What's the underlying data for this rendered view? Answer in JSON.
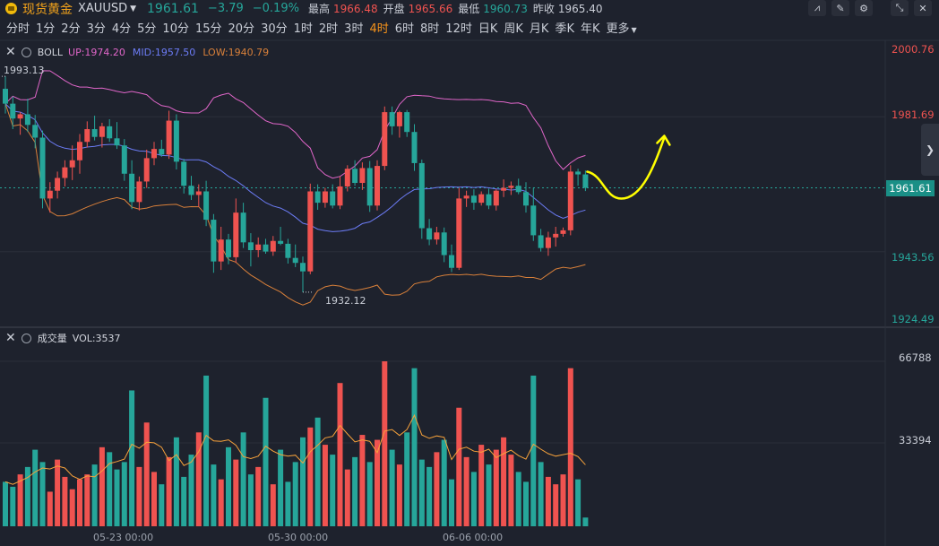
{
  "header": {
    "name": "现货黄金",
    "code": "XAUUSD",
    "last": "1961.61",
    "change": "−3.79",
    "change_pct": "−0.19%",
    "high_label": "最高",
    "high": "1966.48",
    "open_label": "开盘",
    "open": "1965.66",
    "low_label": "最低",
    "low": "1960.73",
    "prev_label": "昨收",
    "prev": "1965.40"
  },
  "timeframes": [
    {
      "label": "分时",
      "active": false
    },
    {
      "label": "1分",
      "active": false
    },
    {
      "label": "2分",
      "active": false
    },
    {
      "label": "3分",
      "active": false
    },
    {
      "label": "4分",
      "active": false
    },
    {
      "label": "5分",
      "active": false
    },
    {
      "label": "10分",
      "active": false
    },
    {
      "label": "15分",
      "active": false
    },
    {
      "label": "20分",
      "active": false
    },
    {
      "label": "30分",
      "active": false
    },
    {
      "label": "1时",
      "active": false
    },
    {
      "label": "2时",
      "active": false
    },
    {
      "label": "3时",
      "active": false
    },
    {
      "label": "4时",
      "active": true
    },
    {
      "label": "6时",
      "active": false
    },
    {
      "label": "8时",
      "active": false
    },
    {
      "label": "12时",
      "active": false
    },
    {
      "label": "日K",
      "active": false
    },
    {
      "label": "周K",
      "active": false
    },
    {
      "label": "月K",
      "active": false
    },
    {
      "label": "季K",
      "active": false
    },
    {
      "label": "年K",
      "active": false
    },
    {
      "label": "更多",
      "active": false
    }
  ],
  "boll": {
    "name": "BOLL",
    "up": "UP:1974.20",
    "mid": "MID:1957.50",
    "low": "LOW:1940.79"
  },
  "volume_pane": {
    "name": "成交量",
    "value": "VOL:3537"
  },
  "price_axis": {
    "ticks": [
      {
        "label": "2000.76",
        "color": "#ef5350"
      },
      {
        "label": "1981.69",
        "color": "#ef5350"
      },
      {
        "label": "1943.56",
        "color": "#26a69a"
      },
      {
        "label": "1924.49",
        "color": "#26a69a"
      }
    ],
    "current": "1961.61"
  },
  "volume_axis": {
    "ticks": [
      "66788",
      "33394"
    ]
  },
  "time_axis": {
    "ticks": [
      "05-23 00:00",
      "05-30 00:00",
      "06-06 00:00"
    ]
  },
  "annotations": {
    "high_mark": "1993.13",
    "low_mark": "1932.12"
  },
  "colors": {
    "up": "#ef5350",
    "down": "#26a69a",
    "boll_up": "#e066c9",
    "boll_mid": "#6c7cf6",
    "boll_low": "#d9803a",
    "vol_ma": "#f7a23b",
    "drawing": "#ffff00"
  },
  "chart_data": {
    "type": "candlestick",
    "timeframe": "4时",
    "ylim": [
      1924.49,
      2000.76
    ],
    "x_ticks": [
      "05-23 00:00",
      "05-30 00:00",
      "06-06 00:00"
    ],
    "candles": [
      [
        1989.6,
        1993.1,
        1982.6,
        1985.4
      ],
      [
        1985.4,
        1987.4,
        1978.2,
        1981.2
      ],
      [
        1981.2,
        1983.0,
        1976.6,
        1982.4
      ],
      [
        1982.4,
        1986.8,
        1977.4,
        1979.4
      ],
      [
        1979.4,
        1982.2,
        1972.8,
        1975.8
      ],
      [
        1975.8,
        1977.8,
        1955.8,
        1958.6
      ],
      [
        1958.6,
        1963.2,
        1954.6,
        1960.8
      ],
      [
        1960.8,
        1966.2,
        1958.6,
        1964.4
      ],
      [
        1964.4,
        1969.4,
        1962.0,
        1967.4
      ],
      [
        1967.4,
        1973.6,
        1963.8,
        1969.4
      ],
      [
        1969.4,
        1976.8,
        1965.6,
        1974.6
      ],
      [
        1974.6,
        1980.4,
        1973.0,
        1978.2
      ],
      [
        1978.2,
        1982.0,
        1975.0,
        1976.0
      ],
      [
        1976.0,
        1980.0,
        1973.0,
        1979.0
      ],
      [
        1979.0,
        1981.0,
        1974.6,
        1975.6
      ],
      [
        1975.6,
        1980.2,
        1972.6,
        1973.6
      ],
      [
        1973.6,
        1975.4,
        1963.6,
        1965.6
      ],
      [
        1965.6,
        1969.4,
        1955.6,
        1957.6
      ],
      [
        1957.6,
        1964.8,
        1955.2,
        1963.4
      ],
      [
        1963.4,
        1972.4,
        1961.6,
        1970.0
      ],
      [
        1970.0,
        1974.6,
        1968.0,
        1972.6
      ],
      [
        1972.6,
        1975.2,
        1970.4,
        1971.0
      ],
      [
        1971.0,
        1983.4,
        1969.8,
        1980.6
      ],
      [
        1980.6,
        1982.4,
        1966.8,
        1969.0
      ],
      [
        1969.0,
        1969.8,
        1960.0,
        1962.2
      ],
      [
        1962.2,
        1965.0,
        1958.2,
        1959.6
      ],
      [
        1959.6,
        1962.6,
        1956.2,
        1960.6
      ],
      [
        1960.6,
        1963.6,
        1950.8,
        1952.6
      ],
      [
        1952.6,
        1954.2,
        1937.6,
        1940.8
      ],
      [
        1940.8,
        1950.6,
        1938.4,
        1947.0
      ],
      [
        1947.0,
        1948.6,
        1940.0,
        1942.0
      ],
      [
        1942.0,
        1958.6,
        1940.4,
        1954.6
      ],
      [
        1954.6,
        1957.4,
        1944.6,
        1946.2
      ],
      [
        1946.2,
        1948.8,
        1939.4,
        1944.0
      ],
      [
        1944.0,
        1947.6,
        1942.0,
        1945.6
      ],
      [
        1945.6,
        1947.2,
        1943.0,
        1943.6
      ],
      [
        1943.6,
        1948.0,
        1942.4,
        1946.6
      ],
      [
        1946.6,
        1950.6,
        1945.4,
        1945.8
      ],
      [
        1945.8,
        1947.2,
        1940.2,
        1941.8
      ],
      [
        1941.8,
        1945.6,
        1939.2,
        1940.4
      ],
      [
        1940.4,
        1942.2,
        1932.1,
        1938.0
      ],
      [
        1938.0,
        1962.8,
        1937.2,
        1960.6
      ],
      [
        1960.6,
        1962.6,
        1955.4,
        1957.4
      ],
      [
        1957.4,
        1961.6,
        1956.0,
        1960.6
      ],
      [
        1960.6,
        1962.6,
        1955.8,
        1956.6
      ],
      [
        1956.6,
        1964.8,
        1955.6,
        1962.0
      ],
      [
        1962.0,
        1968.0,
        1960.6,
        1967.0
      ],
      [
        1967.0,
        1969.4,
        1962.2,
        1963.0
      ],
      [
        1963.0,
        1968.8,
        1961.0,
        1967.2
      ],
      [
        1967.2,
        1969.2,
        1954.8,
        1956.6
      ],
      [
        1956.6,
        1969.4,
        1955.2,
        1967.8
      ],
      [
        1967.8,
        1984.6,
        1966.6,
        1983.0
      ],
      [
        1983.0,
        1984.6,
        1976.6,
        1979.0
      ],
      [
        1979.0,
        1983.4,
        1975.8,
        1983.0
      ],
      [
        1983.0,
        1983.6,
        1976.0,
        1977.4
      ],
      [
        1977.4,
        1979.6,
        1966.4,
        1968.6
      ],
      [
        1968.6,
        1969.6,
        1947.2,
        1950.2
      ],
      [
        1950.2,
        1952.8,
        1945.4,
        1947.0
      ],
      [
        1947.0,
        1950.6,
        1945.6,
        1949.0
      ],
      [
        1949.0,
        1950.4,
        1940.6,
        1942.6
      ],
      [
        1942.6,
        1945.6,
        1937.8,
        1939.0
      ],
      [
        1939.0,
        1961.6,
        1938.4,
        1958.6
      ],
      [
        1958.6,
        1960.8,
        1956.2,
        1959.4
      ],
      [
        1959.4,
        1961.2,
        1955.4,
        1957.4
      ],
      [
        1957.4,
        1960.6,
        1956.6,
        1959.8
      ],
      [
        1959.8,
        1961.4,
        1955.6,
        1956.6
      ],
      [
        1956.6,
        1961.2,
        1955.2,
        1960.8
      ],
      [
        1960.8,
        1964.0,
        1959.0,
        1961.6
      ],
      [
        1961.6,
        1963.4,
        1959.6,
        1962.2
      ],
      [
        1962.2,
        1964.2,
        1959.8,
        1960.4
      ],
      [
        1960.4,
        1963.2,
        1954.6,
        1956.6
      ],
      [
        1956.6,
        1961.6,
        1946.6,
        1948.2
      ],
      [
        1948.2,
        1950.0,
        1943.6,
        1944.6
      ],
      [
        1944.6,
        1949.2,
        1942.4,
        1947.6
      ],
      [
        1947.6,
        1950.6,
        1945.0,
        1948.6
      ],
      [
        1948.6,
        1950.4,
        1947.8,
        1949.6
      ],
      [
        1949.6,
        1968.0,
        1948.2,
        1966.2
      ],
      [
        1966.2,
        1967.0,
        1962.2,
        1965.4
      ],
      [
        1965.4,
        1966.5,
        1960.7,
        1961.6
      ]
    ],
    "volume": [
      18000,
      16000,
      21000,
      24000,
      31000,
      26000,
      14000,
      27000,
      20000,
      15000,
      19000,
      21000,
      25000,
      32000,
      30000,
      23000,
      26000,
      55000,
      24000,
      42000,
      22000,
      17000,
      28000,
      36000,
      20000,
      29000,
      38000,
      61000,
      25000,
      19000,
      32000,
      27000,
      38000,
      21000,
      24000,
      52000,
      17000,
      31000,
      18000,
      26000,
      36000,
      40000,
      44000,
      33000,
      29000,
      58000,
      23000,
      28000,
      37000,
      26000,
      35000,
      66788,
      31000,
      25000,
      38000,
      64000,
      27000,
      24000,
      30000,
      35000,
      19000,
      48000,
      28000,
      22000,
      33000,
      25000,
      31000,
      36000,
      29000,
      22000,
      18000,
      61000,
      26000,
      20000,
      17000,
      21000,
      64000,
      19000,
      3537
    ],
    "boll": {
      "up": "1974.20",
      "mid": "1957.50",
      "low": "1940.79"
    },
    "volume_ticks": [
      66788,
      33394
    ],
    "last_volume": 3537
  }
}
